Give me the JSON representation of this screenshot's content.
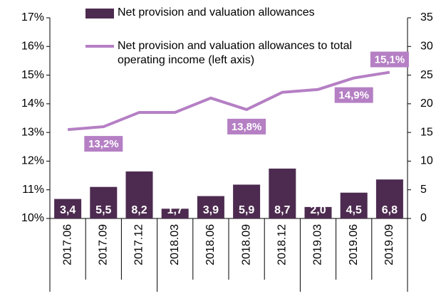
{
  "chart_data": {
    "type": "bar-line",
    "categories": [
      "2017.06",
      "2017.09",
      "2017.12",
      "2018.03",
      "2018.06",
      "2018.09",
      "2018.12",
      "2019.03",
      "2019.06",
      "2019.09"
    ],
    "series": [
      {
        "name": "Net provision and valuation allowances",
        "type": "bar",
        "axis": "y2",
        "color": "#4d2b50",
        "values": [
          3.4,
          5.5,
          8.2,
          1.7,
          3.9,
          5.9,
          8.7,
          2.0,
          4.5,
          6.8
        ],
        "value_labels": [
          "3,4",
          "5,5",
          "8,2",
          "1,7",
          "3,9",
          "5,9",
          "8,7",
          "2,0",
          "4,5",
          "6,8"
        ]
      },
      {
        "name": "Net provision and valuation allowances to total operating income (left axis)",
        "type": "line",
        "axis": "y",
        "color": "#b57fc4",
        "values": [
          13.1,
          13.2,
          13.7,
          13.7,
          14.2,
          13.8,
          14.4,
          14.5,
          14.9,
          15.1
        ],
        "value_labels": [
          null,
          "13,2%",
          null,
          null,
          null,
          "13,8%",
          null,
          null,
          "14,9%",
          "15,1%"
        ]
      }
    ],
    "ylim": [
      10,
      17
    ],
    "yticks": [
      {
        "value": 10,
        "label": "10%"
      },
      {
        "value": 11,
        "label": "11%"
      },
      {
        "value": 12,
        "label": "12%"
      },
      {
        "value": 13,
        "label": "13%"
      },
      {
        "value": 14,
        "label": "14%"
      },
      {
        "value": 15,
        "label": "15%"
      },
      {
        "value": 16,
        "label": "16%"
      },
      {
        "value": 17,
        "label": "17%"
      }
    ],
    "y2lim": [
      0,
      35
    ],
    "y2ticks": [
      0,
      5,
      10,
      15,
      20,
      25,
      30,
      35
    ],
    "grid": false
  }
}
